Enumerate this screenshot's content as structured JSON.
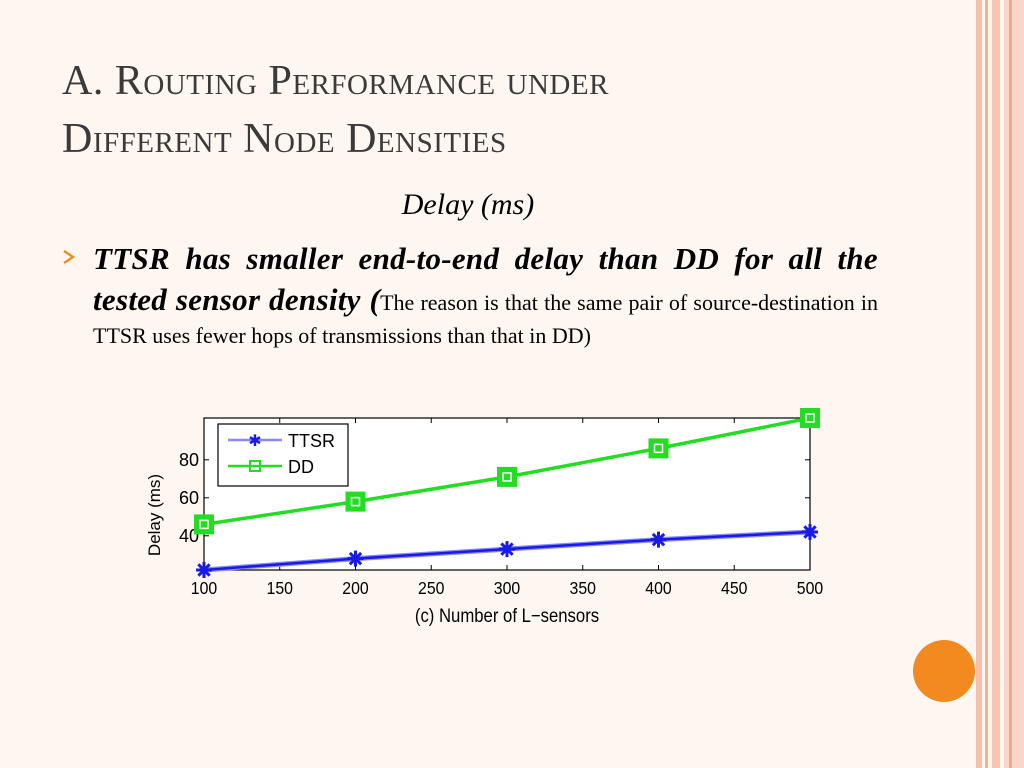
{
  "slide": {
    "title_line1": "A. Routing Performance under",
    "title_line2": "Different Node Densities",
    "subtitle": "Delay (ms)",
    "bullet_bold": "TTSR has smaller end-to-end delay than DD for all the tested sensor density (",
    "bullet_reason": "The reason is that the same pair of source-destination in TTSR uses fewer hops of transmissions than that in DD)"
  },
  "colors": {
    "ttsr": "#1a1ae6",
    "dd": "#22dd22",
    "accent": "#f28a1f",
    "title": "#3a3a3a"
  },
  "chart_data": {
    "type": "line",
    "title": "",
    "xlabel": "(c) Number of L−sensors",
    "ylabel": "Delay (ms)",
    "x": [
      100,
      200,
      300,
      400,
      500
    ],
    "xticks": [
      "100",
      "150",
      "200",
      "250",
      "300",
      "350",
      "400",
      "450",
      "500"
    ],
    "yticks": [
      "40",
      "60",
      "80"
    ],
    "xlim": [
      100,
      500
    ],
    "ylim": [
      22,
      102
    ],
    "legend_position": "top-left",
    "series": [
      {
        "name": "TTSR",
        "values": [
          22,
          28,
          33,
          38,
          42
        ]
      },
      {
        "name": "DD",
        "values": [
          46,
          58,
          71,
          86,
          102
        ]
      }
    ]
  }
}
